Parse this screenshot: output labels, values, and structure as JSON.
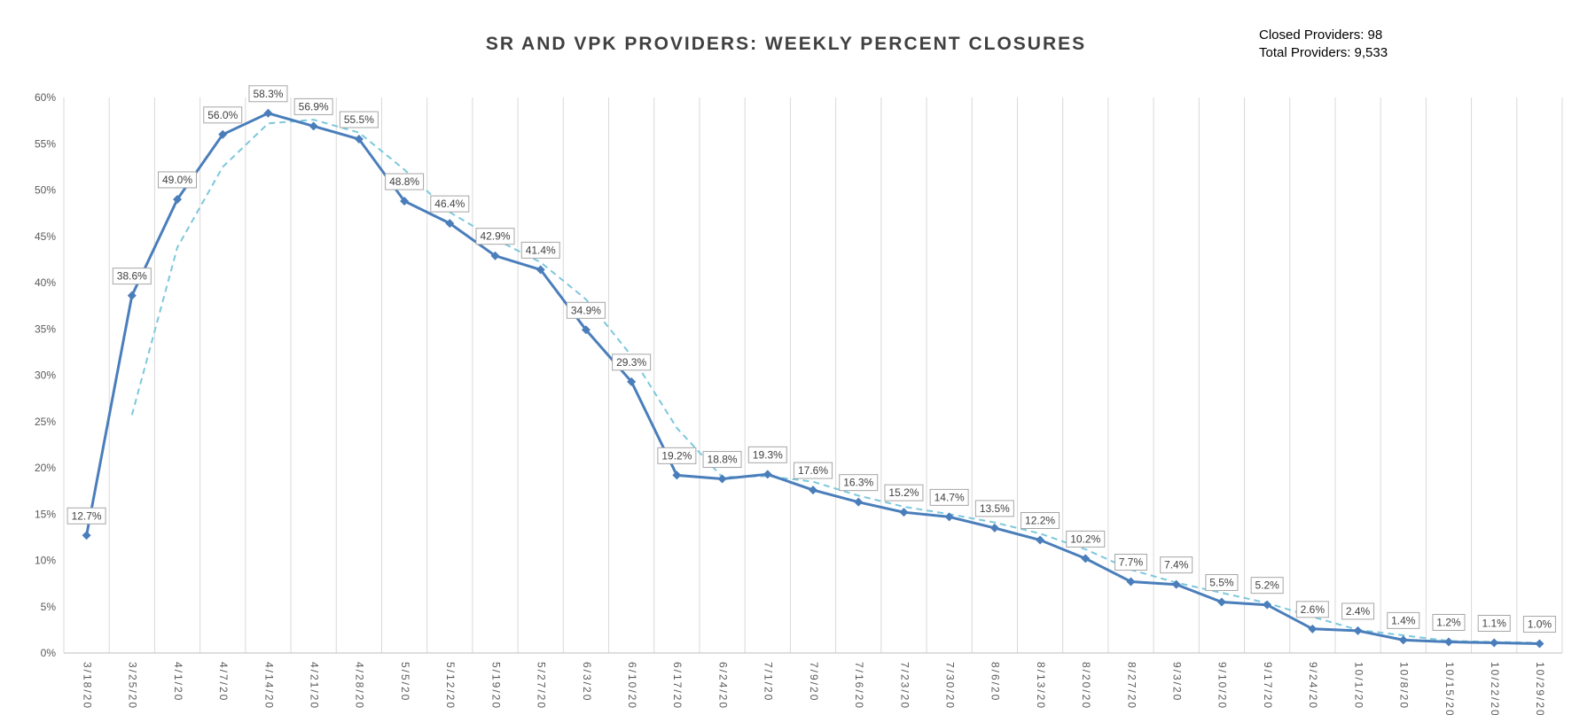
{
  "chart_data": {
    "type": "line",
    "title": "SR AND VPK PROVIDERS:  WEEKLY  PERCENT  CLOSURES",
    "annotations": {
      "closed_providers": "Closed Providers: 98",
      "total_providers": "Total Providers: 9,533"
    },
    "categories": [
      "3/18/20",
      "3/25/20",
      "4/1/20",
      "4/7/20",
      "4/14/20",
      "4/21/20",
      "4/28/20",
      "5/5/20",
      "5/12/20",
      "5/19/20",
      "5/27/20",
      "6/3/20",
      "6/10/20",
      "6/17/20",
      "6/24/20",
      "7/1/20",
      "7/9/20",
      "7/16/20",
      "7/23/20",
      "7/30/20",
      "8/6/20",
      "8/13/20",
      "8/20/20",
      "8/27/20",
      "9/3/20",
      "9/10/20",
      "9/17/20",
      "9/24/20",
      "10/1/20",
      "10/8/20",
      "10/15/20",
      "10/22/20",
      "10/29/20"
    ],
    "series": [
      {
        "type": "line",
        "color": "#4A7EBB",
        "marker": "diamond",
        "values": [
          12.7,
          38.6,
          49.0,
          56.0,
          58.3,
          56.9,
          55.5,
          48.8,
          46.4,
          42.9,
          41.4,
          34.9,
          29.3,
          19.2,
          18.8,
          19.3,
          17.6,
          16.3,
          15.2,
          14.7,
          13.5,
          12.2,
          10.2,
          7.7,
          7.4,
          5.5,
          5.2,
          2.6,
          2.4,
          1.4,
          1.2,
          1.1,
          1.0
        ],
        "data_labels": [
          "12.7%",
          "38.6%",
          "49.0%",
          "56.0%",
          "58.3%",
          "56.9%",
          "55.5%",
          "48.8%",
          "46.4%",
          "42.9%",
          "41.4%",
          "34.9%",
          "29.3%",
          "19.2%",
          "18.8%",
          "19.3%",
          "17.6%",
          "16.3%",
          "15.2%",
          "14.7%",
          "13.5%",
          "12.2%",
          "10.2%",
          "7.7%",
          "7.4%",
          "5.5%",
          "5.2%",
          "2.6%",
          "2.4%",
          "1.4%",
          "1.2%",
          "1.1%",
          "1.0%"
        ]
      },
      {
        "type": "trendline-moving-average",
        "color": "#7CC8DC",
        "dashed": true,
        "values": [
          null,
          25.7,
          43.8,
          52.5,
          57.2,
          57.6,
          56.2,
          52.2,
          47.6,
          44.7,
          42.2,
          38.2,
          32.1,
          24.3,
          19.0,
          19.1,
          18.5,
          17.0,
          15.8,
          15.0,
          14.1,
          12.9,
          11.2,
          9.0,
          7.6,
          6.5,
          5.4,
          3.9,
          2.5,
          1.9,
          1.3,
          1.2,
          1.1
        ]
      }
    ],
    "yticks": [
      "0%",
      "5%",
      "10%",
      "15%",
      "20%",
      "25%",
      "30%",
      "35%",
      "40%",
      "45%",
      "50%",
      "55%",
      "60%"
    ],
    "ylim": [
      0,
      60
    ],
    "grid": {
      "vertical": true,
      "horizontal": false
    },
    "xlabel": "",
    "ylabel": ""
  }
}
